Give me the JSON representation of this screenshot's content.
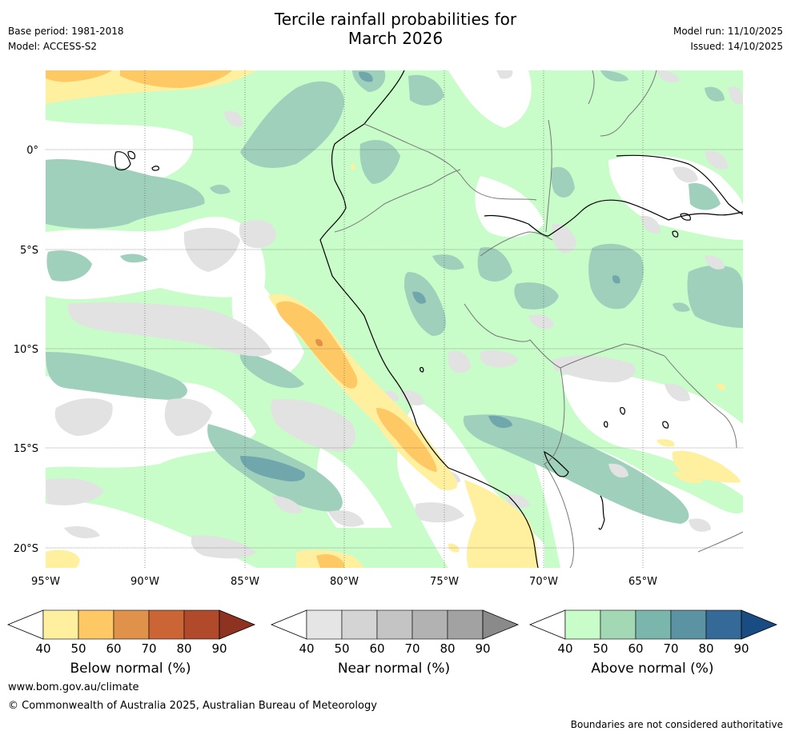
{
  "title": {
    "line1": "Tercile rainfall probabilities for",
    "line2": "March 2026"
  },
  "meta": {
    "base_period": "Base period: 1981-2018",
    "model": "Model: ACCESS-S2",
    "model_run": "Model run: 11/10/2025",
    "issued": "Issued: 14/10/2025"
  },
  "map": {
    "lat_labels": [
      "0°",
      "5°S",
      "10°S",
      "15°S",
      "20°S"
    ],
    "lon_labels": [
      "95°W",
      "90°W",
      "85°W",
      "80°W",
      "75°W",
      "70°W",
      "65°W"
    ]
  },
  "colorbars": [
    {
      "label": "Below normal (%)",
      "ticks": [
        "40",
        "50",
        "60",
        "70",
        "80",
        "90"
      ],
      "colors": [
        "#fff0a0",
        "#fec965",
        "#e0914a",
        "#cc6535",
        "#b04a2a",
        "#8e3322"
      ]
    },
    {
      "label": "Near normal (%)",
      "ticks": [
        "40",
        "50",
        "60",
        "70",
        "80",
        "90"
      ],
      "colors": [
        "#e5e5e5",
        "#d4d4d4",
        "#c4c4c4",
        "#b2b2b2",
        "#a2a2a2",
        "#8a8a8a"
      ]
    },
    {
      "label": "Above normal (%)",
      "ticks": [
        "40",
        "50",
        "60",
        "70",
        "80",
        "90"
      ],
      "colors": [
        "#c8fcc8",
        "#a2d8b4",
        "#7ab6ac",
        "#5c93a2",
        "#356a98",
        "#1a4c84"
      ]
    }
  ],
  "colors": {
    "green_light": "#c8fcc8",
    "green_mid": "#9fd0bb",
    "teal": "#6fa7ad",
    "grey": "#e2e2e2",
    "yellow": "#fff0a0",
    "orange": "#fec965",
    "dark_orange": "#e0914a"
  },
  "footer": {
    "website": "www.bom.gov.au/climate",
    "copyright": "© Commonwealth of Australia 2025, Australian Bureau of Meteorology",
    "disclaimer": "Boundaries are not considered authoritative"
  }
}
